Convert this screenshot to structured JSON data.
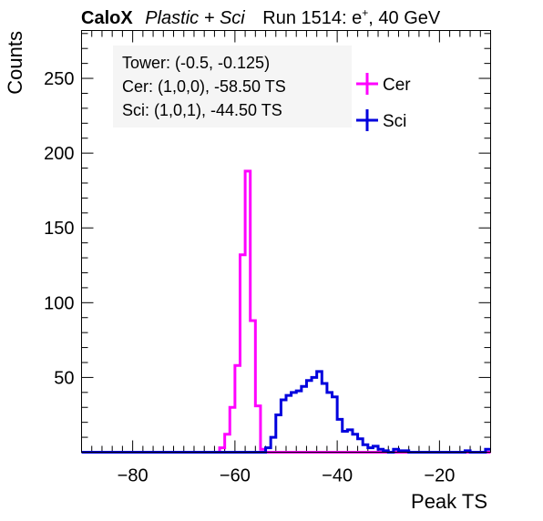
{
  "chart_data": {
    "type": "line",
    "title": {
      "brand": "CaloX",
      "subtitle": "Plastic + Sci",
      "run_prefix": "Run 1514: e",
      "run_superscript": "+",
      "run_suffix": ", 40 GeV"
    },
    "xlabel": "Peak TS",
    "ylabel": "Counts",
    "xlim": [
      -90,
      -10
    ],
    "ylim": [
      0,
      282
    ],
    "bin_width": 1,
    "x_ticks": [
      -80,
      -60,
      -40,
      -20
    ],
    "x_tick_labels": [
      "−80",
      "−60",
      "−40",
      "−20"
    ],
    "y_ticks": [
      50,
      100,
      150,
      200,
      250
    ],
    "y_tick_labels": [
      "50",
      "100",
      "150",
      "200",
      "250"
    ],
    "grid": false,
    "info_box": [
      "Tower: (-0.5, -0.125)",
      "Cer: (1,0,0), -58.50 TS",
      "Sci: (1,0,1), -44.50 TS"
    ],
    "legend_position": "top-right",
    "series": [
      {
        "name": "Cer",
        "color": "#ff00ff",
        "x_start": -90,
        "values": [
          0,
          0,
          0,
          0,
          0,
          0,
          0,
          0,
          0,
          0,
          0,
          0,
          0,
          0,
          0,
          0,
          0,
          0,
          0,
          0,
          0,
          0,
          0,
          0,
          0,
          0,
          0,
          3,
          12,
          30,
          58,
          132,
          188,
          88,
          31,
          2,
          0,
          0,
          0,
          0,
          0,
          0,
          0,
          0,
          0,
          0,
          0,
          0,
          0,
          0,
          0,
          0,
          0,
          0,
          0,
          0,
          0,
          0,
          0,
          0,
          0,
          0,
          0,
          0,
          0,
          0,
          0,
          0,
          0,
          0,
          0,
          0,
          0,
          0,
          0,
          0,
          0,
          0,
          0,
          0
        ]
      },
      {
        "name": "Sci",
        "color": "#0000dd",
        "x_start": -90,
        "values": [
          0,
          0,
          0,
          0,
          0,
          0,
          0,
          0,
          0,
          0,
          0,
          0,
          0,
          0,
          0,
          0,
          0,
          0,
          0,
          0,
          0,
          0,
          0,
          0,
          0,
          0,
          0,
          0,
          0,
          0,
          0,
          0,
          0,
          0,
          0,
          0,
          3,
          10,
          25,
          35,
          38,
          40,
          41,
          44,
          48,
          50,
          54,
          46,
          40,
          37,
          22,
          14,
          15,
          12,
          9,
          5,
          3,
          4,
          2,
          1,
          0,
          2,
          1,
          1,
          0,
          0,
          0,
          0,
          0,
          0,
          0,
          0,
          0,
          0,
          0,
          1,
          0,
          0,
          0,
          2
        ]
      }
    ]
  }
}
